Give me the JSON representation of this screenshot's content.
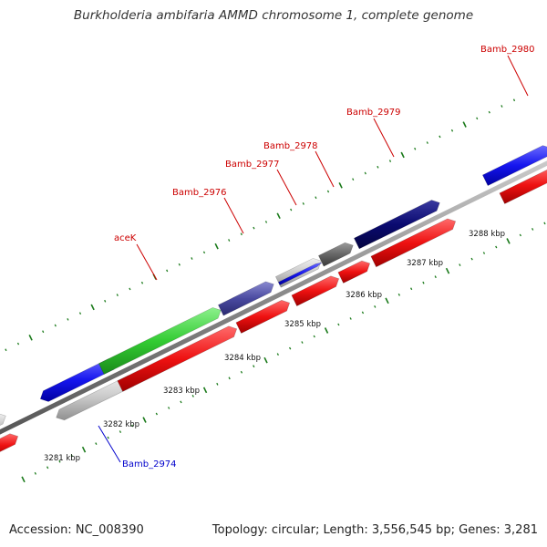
{
  "title": "Burkholderia ambifaria AMMD chromosome 1, complete genome",
  "accession_label": "Accession: NC_008390",
  "topology_label": "Topology: circular; Length: 3,556,545 bp; Genes: 3,281",
  "kbp_ticks": [
    "3281 kbp",
    "3282 kbp",
    "3283 kbp",
    "3284 kbp",
    "3285 kbp",
    "3286 kbp",
    "3287 kbp",
    "3288 kbp"
  ],
  "gene_labels": [
    {
      "name": "Bamb_2974",
      "color": "#0000cc"
    },
    {
      "name": "aceK",
      "color": "#cc0000"
    },
    {
      "name": "Bamb_2976",
      "color": "#cc0000"
    },
    {
      "name": "Bamb_2977",
      "color": "#cc0000"
    },
    {
      "name": "Bamb_2978",
      "color": "#cc0000"
    },
    {
      "name": "Bamb_2979",
      "color": "#cc0000"
    },
    {
      "name": "Bamb_2980",
      "color": "#cc0000"
    }
  ],
  "colors": {
    "cds_red": "#ee1111",
    "gene_green": "#33cc33",
    "gene_blue": "#1515ee",
    "gene_navy": "#0a0a70",
    "gene_slate": "#4a4aa0",
    "gene_gray": "#666666",
    "gene_lightgray": "#c8c8c8",
    "backbone": "#888888",
    "tick_green": "#1a7a1a"
  }
}
